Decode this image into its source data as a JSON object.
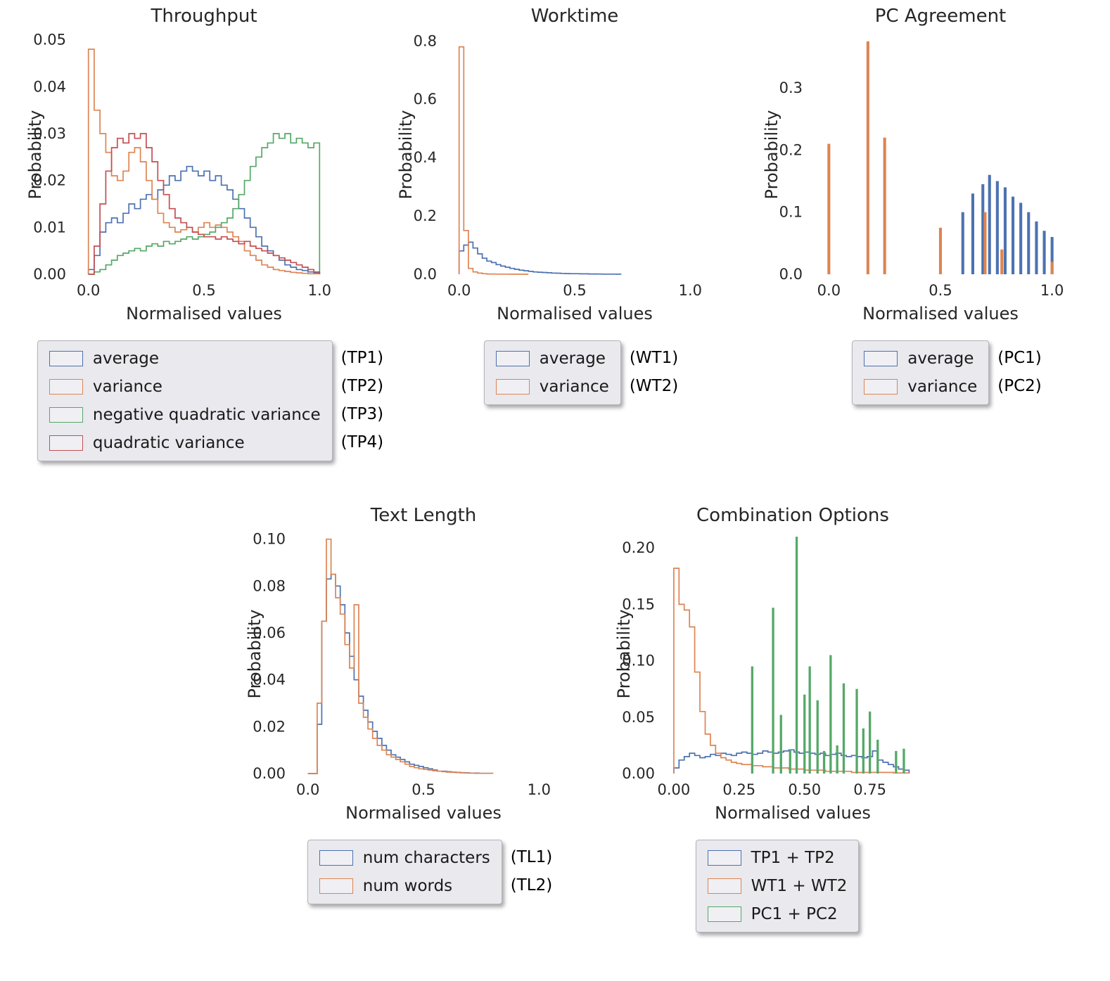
{
  "figure": {
    "background": "#ffffff"
  },
  "colors": {
    "blue": "#4c72b0",
    "orange": "#dd8452",
    "green": "#55a868",
    "red": "#c44e52"
  },
  "chart_data": [
    {
      "id": "throughput",
      "type": "bar",
      "subtype": "step-histogram",
      "title": "Throughput",
      "xlabel": "Normalised values",
      "ylabel": "Probability",
      "xlim": [
        -0.06,
        1.06
      ],
      "ylim": [
        0,
        0.051
      ],
      "xticks": [
        0.0,
        0.5,
        1.0
      ],
      "xtick_labels": [
        "0.0",
        "0.5",
        "1.0"
      ],
      "yticks": [
        0.0,
        0.01,
        0.02,
        0.03,
        0.04,
        0.05
      ],
      "ytick_labels": [
        "0.00",
        "0.01",
        "0.02",
        "0.03",
        "0.04",
        "0.05"
      ],
      "bin_width": 0.025,
      "grid": false,
      "legend_position": "below",
      "series": [
        {
          "name": "average",
          "tag": "(TP1)",
          "color": "#4c72b0",
          "style": "step",
          "x_start": 0.0,
          "y": [
            0.001,
            0.004,
            0.009,
            0.011,
            0.012,
            0.011,
            0.013,
            0.015,
            0.014,
            0.016,
            0.017,
            0.016,
            0.018,
            0.019,
            0.021,
            0.02,
            0.022,
            0.023,
            0.022,
            0.021,
            0.022,
            0.02,
            0.021,
            0.019,
            0.018,
            0.016,
            0.014,
            0.012,
            0.01,
            0.008,
            0.006,
            0.005,
            0.004,
            0.003,
            0.002,
            0.0015,
            0.001,
            0.0008,
            0.0005,
            0.0003
          ]
        },
        {
          "name": "variance",
          "tag": "(TP2)",
          "color": "#dd8452",
          "style": "step",
          "x_start": 0.0,
          "y": [
            0.048,
            0.035,
            0.03,
            0.026,
            0.021,
            0.02,
            0.022,
            0.026,
            0.027,
            0.024,
            0.02,
            0.016,
            0.013,
            0.011,
            0.01,
            0.009,
            0.0095,
            0.01,
            0.009,
            0.01,
            0.011,
            0.01,
            0.0105,
            0.01,
            0.009,
            0.008,
            0.007,
            0.005,
            0.004,
            0.003,
            0.002,
            0.0015,
            0.001,
            0.0008,
            0.0006,
            0.0004,
            0.0003,
            0.0002,
            0.0001,
            0.0001
          ]
        },
        {
          "name": "negative quadratic variance",
          "tag": "(TP3)",
          "color": "#55a868",
          "style": "step",
          "x_start": 0.0,
          "y": [
            0,
            0.0005,
            0.001,
            0.002,
            0.003,
            0.004,
            0.0045,
            0.005,
            0.0055,
            0.005,
            0.006,
            0.0065,
            0.006,
            0.007,
            0.0065,
            0.007,
            0.0075,
            0.008,
            0.0075,
            0.008,
            0.0085,
            0.009,
            0.01,
            0.011,
            0.012,
            0.014,
            0.017,
            0.02,
            0.023,
            0.025,
            0.027,
            0.028,
            0.03,
            0.029,
            0.03,
            0.028,
            0.029,
            0.028,
            0.027,
            0.028
          ]
        },
        {
          "name": "quadratic variance",
          "tag": "(TP4)",
          "color": "#c44e52",
          "style": "step",
          "x_start": 0.0,
          "y": [
            0,
            0.006,
            0.015,
            0.022,
            0.027,
            0.029,
            0.028,
            0.03,
            0.029,
            0.03,
            0.027,
            0.024,
            0.02,
            0.017,
            0.014,
            0.012,
            0.011,
            0.01,
            0.009,
            0.0085,
            0.008,
            0.008,
            0.0075,
            0.008,
            0.0075,
            0.007,
            0.0065,
            0.007,
            0.006,
            0.0055,
            0.005,
            0.0045,
            0.004,
            0.0035,
            0.003,
            0.0025,
            0.002,
            0.0015,
            0.001,
            0.0005
          ]
        }
      ]
    },
    {
      "id": "worktime",
      "type": "bar",
      "subtype": "step-histogram",
      "title": "Worktime",
      "xlabel": "Normalised values",
      "ylabel": "Probability",
      "xlim": [
        -0.06,
        1.06
      ],
      "ylim": [
        0,
        0.82
      ],
      "xticks": [
        0.0,
        0.5,
        1.0
      ],
      "xtick_labels": [
        "0.0",
        "0.5",
        "1.0"
      ],
      "yticks": [
        0.0,
        0.2,
        0.4,
        0.6,
        0.8
      ],
      "ytick_labels": [
        "0.0",
        "0.2",
        "0.4",
        "0.6",
        "0.8"
      ],
      "bin_width": 0.02,
      "grid": false,
      "legend_position": "below",
      "series": [
        {
          "name": "average",
          "tag": "(WT1)",
          "color": "#4c72b0",
          "style": "step",
          "x_start": 0.0,
          "y": [
            0.08,
            0.1,
            0.11,
            0.09,
            0.07,
            0.055,
            0.045,
            0.04,
            0.033,
            0.028,
            0.024,
            0.02,
            0.017,
            0.014,
            0.012,
            0.01,
            0.008,
            0.007,
            0.006,
            0.005,
            0.004,
            0.0035,
            0.003,
            0.0025,
            0.002,
            0.002,
            0.0015,
            0.0015,
            0.001,
            0.001,
            0.0008,
            0.0006,
            0.0005,
            0.0004,
            0.0003
          ]
        },
        {
          "name": "variance",
          "tag": "(WT2)",
          "color": "#dd8452",
          "style": "step",
          "x_start": 0.0,
          "y": [
            0.78,
            0.15,
            0.02,
            0.008,
            0.004,
            0.002,
            0.001,
            0.0008,
            0.0006,
            0.0005,
            0.0004,
            0.0003,
            0.0002,
            0.0002,
            0.0001
          ]
        }
      ]
    },
    {
      "id": "pc-agreement",
      "type": "bar",
      "subtype": "discrete-bars",
      "title": "PC Agreement",
      "xlabel": "Normalised values",
      "ylabel": "Probability",
      "xlim": [
        -0.08,
        1.08
      ],
      "ylim": [
        0,
        0.385
      ],
      "xticks": [
        0.0,
        0.5,
        1.0
      ],
      "xtick_labels": [
        "0.0",
        "0.5",
        "1.0"
      ],
      "yticks": [
        0.0,
        0.1,
        0.2,
        0.3
      ],
      "ytick_labels": [
        "0.0",
        "0.1",
        "0.2",
        "0.3"
      ],
      "grid": false,
      "legend_position": "below",
      "series": [
        {
          "name": "average",
          "tag": "(PC1)",
          "color": "#4c72b0",
          "style": "bar",
          "bar_width": 0.013,
          "points": [
            [
              0.6,
              0.1
            ],
            [
              0.645,
              0.13
            ],
            [
              0.69,
              0.145
            ],
            [
              0.72,
              0.16
            ],
            [
              0.755,
              0.15
            ],
            [
              0.79,
              0.14
            ],
            [
              0.825,
              0.125
            ],
            [
              0.86,
              0.115
            ],
            [
              0.895,
              0.1
            ],
            [
              0.93,
              0.085
            ],
            [
              0.965,
              0.07
            ],
            [
              1.0,
              0.06
            ]
          ]
        },
        {
          "name": "variance",
          "tag": "(PC2)",
          "color": "#dd8452",
          "style": "bar",
          "bar_width": 0.013,
          "points": [
            [
              0.0,
              0.21
            ],
            [
              0.175,
              0.375
            ],
            [
              0.25,
              0.22
            ],
            [
              0.5,
              0.075
            ],
            [
              0.7,
              0.1
            ],
            [
              0.775,
              0.04
            ],
            [
              1.0,
              0.02
            ]
          ]
        }
      ]
    },
    {
      "id": "text-length",
      "type": "bar",
      "subtype": "step-histogram",
      "title": "Text Length",
      "xlabel": "Normalised values",
      "ylabel": "Probability",
      "xlim": [
        -0.06,
        1.06
      ],
      "ylim": [
        0,
        0.102
      ],
      "xticks": [
        0.0,
        0.5,
        1.0
      ],
      "xtick_labels": [
        "0.0",
        "0.5",
        "1.0"
      ],
      "yticks": [
        0.0,
        0.02,
        0.04,
        0.06,
        0.08,
        0.1
      ],
      "ytick_labels": [
        "0.00",
        "0.02",
        "0.04",
        "0.06",
        "0.08",
        "0.10"
      ],
      "bin_width": 0.02,
      "grid": false,
      "legend_position": "below",
      "series": [
        {
          "name": "num characters",
          "tag": "(TL1)",
          "color": "#4c72b0",
          "style": "step",
          "x_start": 0.0,
          "y": [
            0,
            0,
            0.021,
            0.065,
            0.083,
            0.085,
            0.08,
            0.072,
            0.06,
            0.05,
            0.04,
            0.033,
            0.027,
            0.022,
            0.018,
            0.015,
            0.012,
            0.01,
            0.008,
            0.007,
            0.006,
            0.005,
            0.004,
            0.0035,
            0.003,
            0.0025,
            0.002,
            0.0015,
            0.001,
            0.001,
            0.0008,
            0.0006,
            0.0005,
            0.0004,
            0.0003,
            0.0002,
            0.0002,
            0.0001,
            0.0001,
            0.0001
          ]
        },
        {
          "name": "num words",
          "tag": "(TL2)",
          "color": "#dd8452",
          "style": "step",
          "x_start": 0.0,
          "y": [
            0,
            0,
            0.03,
            0.065,
            0.1,
            0.085,
            0.075,
            0.068,
            0.055,
            0.045,
            0.072,
            0.03,
            0.024,
            0.019,
            0.015,
            0.012,
            0.01,
            0.008,
            0.007,
            0.006,
            0.005,
            0.004,
            0.003,
            0.0025,
            0.002,
            0.0018,
            0.0015,
            0.0012,
            0.001,
            0.0008,
            0.0006,
            0.0005,
            0.0004,
            0.0003,
            0.0002,
            0.0002,
            0.0001,
            0.0001,
            0.0001,
            0.0001
          ]
        }
      ]
    },
    {
      "id": "combination-options",
      "type": "bar",
      "subtype": "mixed",
      "title": "Combination Options",
      "xlabel": "Normalised values",
      "ylabel": "Probability",
      "xlim": [
        -0.04,
        0.95
      ],
      "ylim": [
        0,
        0.212
      ],
      "xticks": [
        0.0,
        0.25,
        0.5,
        0.75
      ],
      "xtick_labels": [
        "0.00",
        "0.25",
        "0.50",
        "0.75"
      ],
      "yticks": [
        0.0,
        0.05,
        0.1,
        0.15,
        0.2
      ],
      "ytick_labels": [
        "0.00",
        "0.05",
        "0.10",
        "0.15",
        "0.20"
      ],
      "bin_width": 0.02,
      "grid": false,
      "legend_position": "below",
      "series": [
        {
          "name": "TP1 + TP2",
          "tag": "",
          "color": "#4c72b0",
          "style": "step",
          "x_start": 0.0,
          "y": [
            0.005,
            0.012,
            0.015,
            0.018,
            0.016,
            0.014,
            0.015,
            0.017,
            0.016,
            0.018,
            0.017,
            0.016,
            0.018,
            0.019,
            0.018,
            0.017,
            0.018,
            0.02,
            0.019,
            0.018,
            0.019,
            0.02,
            0.021,
            0.019,
            0.018,
            0.019,
            0.018,
            0.017,
            0.018,
            0.016,
            0.017,
            0.018,
            0.016,
            0.015,
            0.016,
            0.015,
            0.014,
            0.015,
            0.02,
            0.012,
            0.01,
            0.008,
            0.006,
            0.004,
            0.003
          ]
        },
        {
          "name": "WT1 + WT2",
          "tag": "",
          "color": "#dd8452",
          "style": "step",
          "x_start": 0.0,
          "y": [
            0.182,
            0.15,
            0.145,
            0.13,
            0.09,
            0.055,
            0.035,
            0.025,
            0.018,
            0.014,
            0.012,
            0.01,
            0.009,
            0.008,
            0.008,
            0.007,
            0.007,
            0.006,
            0.006,
            0.005,
            0.005,
            0.005,
            0.004,
            0.004,
            0.004,
            0.003,
            0.003,
            0.003,
            0.003,
            0.002,
            0.002,
            0.002,
            0.002,
            0.002,
            0.001,
            0.001,
            0.001,
            0.001,
            0.001,
            0.001,
            0.001,
            0.001,
            0.0005,
            0.0005,
            0.0005
          ]
        },
        {
          "name": "PC1 + PC2",
          "tag": "",
          "color": "#55a868",
          "style": "bar",
          "bar_width": 0.009,
          "points": [
            [
              0.3,
              0.095
            ],
            [
              0.38,
              0.147
            ],
            [
              0.41,
              0.052
            ],
            [
              0.445,
              0.021
            ],
            [
              0.47,
              0.21
            ],
            [
              0.5,
              0.07
            ],
            [
              0.52,
              0.095
            ],
            [
              0.55,
              0.065
            ],
            [
              0.575,
              0.02
            ],
            [
              0.6,
              0.105
            ],
            [
              0.625,
              0.025
            ],
            [
              0.65,
              0.08
            ],
            [
              0.7,
              0.075
            ],
            [
              0.725,
              0.04
            ],
            [
              0.75,
              0.055
            ],
            [
              0.78,
              0.03
            ],
            [
              0.85,
              0.02
            ],
            [
              0.88,
              0.022
            ]
          ]
        }
      ]
    }
  ]
}
